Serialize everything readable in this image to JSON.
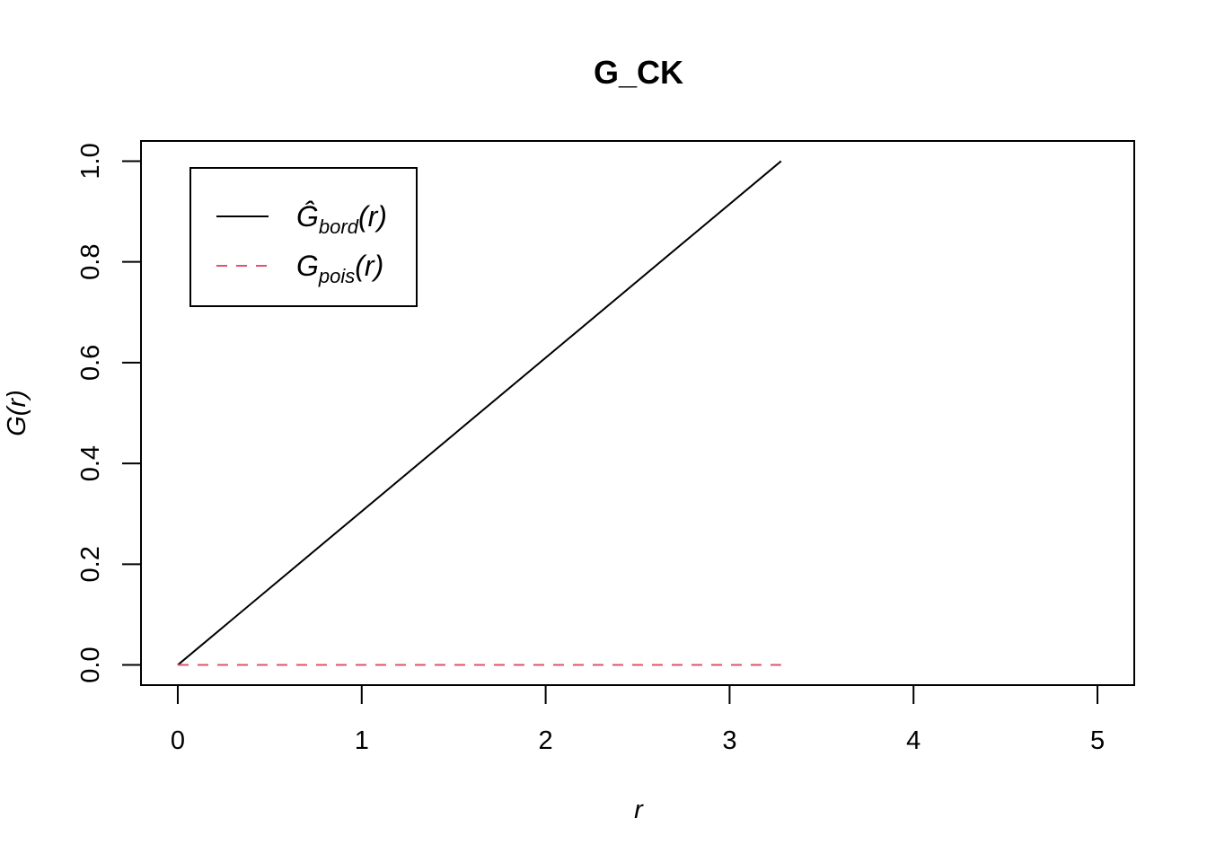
{
  "chart_data": {
    "type": "line",
    "title": "G_CK",
    "xlabel": "r",
    "ylabel": "G(r)",
    "xlim": [
      -0.2,
      5.2
    ],
    "ylim": [
      -0.04,
      1.04
    ],
    "xticks": [
      0,
      1,
      2,
      3,
      4,
      5
    ],
    "yticks": [
      0,
      0.2,
      0.4,
      0.6,
      0.8,
      1.0
    ],
    "xtick_labels": [
      "0",
      "1",
      "2",
      "3",
      "4",
      "5"
    ],
    "ytick_labels": [
      "0.0",
      "0.2",
      "0.4",
      "0.6",
      "0.8",
      "1.0"
    ],
    "grid": false,
    "legend_position": "top-left",
    "series": [
      {
        "name": "Ĝbord(r)",
        "legend_main": "Ĝ",
        "legend_sub": "bord",
        "legend_tail": "(r)",
        "color": "#000000",
        "dash": "solid",
        "x": [
          0,
          3.28
        ],
        "y": [
          0,
          1.0
        ]
      },
      {
        "name": "Gpois(r)",
        "legend_main": "G",
        "legend_sub": "pois",
        "legend_tail": "(r)",
        "color": "#df536b",
        "dash": "dashed",
        "x": [
          0,
          3.28
        ],
        "y": [
          0,
          0
        ]
      }
    ]
  }
}
